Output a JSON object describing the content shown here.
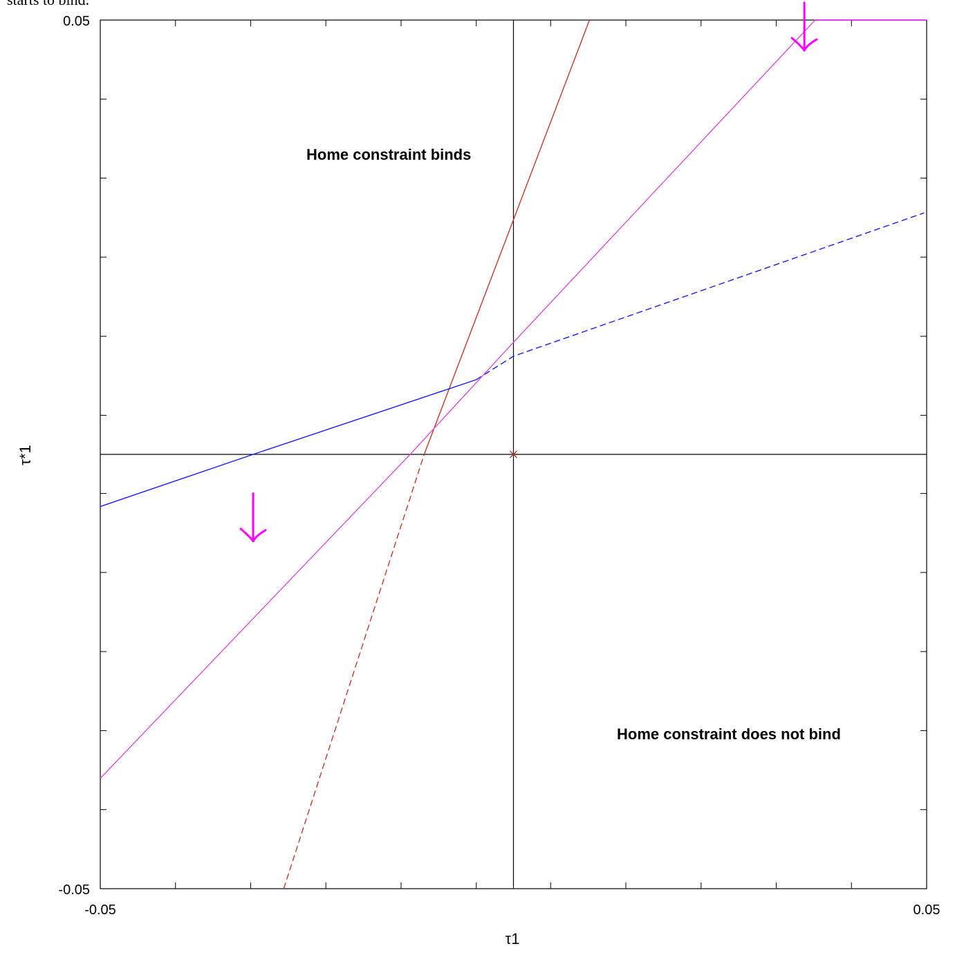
{
  "caption": {
    "fragment": "starts to bind."
  },
  "colors": {
    "background": "#ffffff",
    "axes": "#000000",
    "red_curve": "#c0392b",
    "blue_curve": "#1a1aff",
    "magenta": "#ff00ff",
    "magenta_line": "#d94fd9"
  },
  "chart_data": {
    "type": "line",
    "title": "",
    "xlabel": "τ1",
    "ylabel": "τ*1",
    "xlim": [
      -0.05,
      0.05
    ],
    "ylim": [
      -0.05,
      0.05
    ],
    "grid": false,
    "x_ticks_labeled": [
      {
        "value": -0.05,
        "label": "-0.05"
      },
      {
        "value": 0.05,
        "label": "0.05"
      }
    ],
    "y_ticks_labeled": [
      {
        "value": -0.05,
        "label": "-0.05"
      },
      {
        "value": 0.05,
        "label": "0.05"
      }
    ],
    "minor_ticks_x": [
      -0.0409,
      -0.0318,
      -0.0227,
      -0.0136,
      -0.0045,
      0.0045,
      0.0136,
      0.0227,
      0.0318,
      0.0409
    ],
    "minor_ticks_y": [
      -0.0409,
      -0.0318,
      -0.0227,
      -0.0136,
      -0.0045,
      0.0045,
      0.0136,
      0.0227,
      0.0318,
      0.0409
    ],
    "reference_lines": {
      "x": 0.0,
      "y": 0.0
    },
    "series": [
      {
        "color": "#c0392b",
        "segments": [
          {
            "dash": "solid",
            "x": [
              -0.0108,
              0.0092
            ],
            "y": [
              0.0,
              0.05
            ]
          },
          {
            "dash": "dashed",
            "x": [
              -0.0278,
              -0.0108
            ],
            "y": [
              -0.05,
              0.0
            ]
          }
        ]
      },
      {
        "color": "#1a1aff",
        "segments": [
          {
            "dash": "solid",
            "x": [
              -0.05,
              -0.0315,
              -0.0045
            ],
            "y": [
              -0.006,
              0.0,
              0.0086
            ]
          },
          {
            "dash": "dashed",
            "x": [
              -0.0045,
              0.0,
              0.0497
            ],
            "y": [
              0.0086,
              0.0113,
              0.0278
            ]
          }
        ]
      },
      {
        "color": "#d94fd9",
        "segments": [
          {
            "dash": "solid",
            "x": [
              -0.05,
              -0.0125,
              0.0,
              0.0365
            ],
            "y": [
              -0.0373,
              0.0,
              0.0129,
              0.05
            ]
          }
        ]
      },
      {
        "color": "#ff00ff",
        "segments": [
          {
            "dash": "solid",
            "x": [
              0.0365,
              0.05
            ],
            "y": [
              0.05,
              0.05
            ]
          }
        ]
      }
    ],
    "markers": [
      {
        "x": 0.0,
        "y": 0.0,
        "symbol": "x",
        "color": "#c0392b"
      }
    ],
    "annotations": [
      {
        "text": "Home constraint binds",
        "x": -0.025,
        "y": 0.0345
      },
      {
        "text": "Home constraint does not bind",
        "x": 0.0125,
        "y": -0.032
      }
    ],
    "arrows": [
      {
        "x": -0.0315,
        "y_from": -0.0045,
        "y_to": -0.01,
        "color": "#ff00ff"
      },
      {
        "x": 0.0352,
        "y_from": 0.052,
        "y_to": 0.0465,
        "color": "#ff00ff"
      }
    ]
  }
}
